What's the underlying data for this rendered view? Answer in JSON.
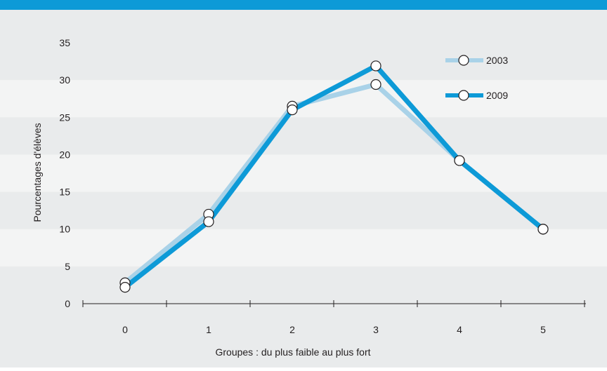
{
  "colors": {
    "top_bar": "#0d9ad7",
    "background": "#e9ebec",
    "band_light": "#f3f4f4",
    "series_2003": "#a9d2e8",
    "series_2009": "#0d9ad7",
    "axis": "#231f20"
  },
  "chart_data": {
    "type": "line",
    "title": "",
    "xlabel": "Groupes : du plus faible au plus fort",
    "ylabel": "Pourcentages d'élèves",
    "x": [
      0,
      1,
      2,
      3,
      4,
      5
    ],
    "x_tick_labels": [
      "0",
      "1",
      "2",
      "3",
      "4",
      "5"
    ],
    "y_tick_labels": [
      "0",
      "5",
      "10",
      "15",
      "20",
      "25",
      "30",
      "35"
    ],
    "ylim": [
      0,
      35
    ],
    "y_ticks": [
      0,
      5,
      10,
      15,
      20,
      25,
      30,
      35
    ],
    "grid": "alternating horizontal bands",
    "legend_position": "top-right",
    "series": [
      {
        "name": "2003",
        "values": [
          2.8,
          12.0,
          26.5,
          29.4,
          19.2,
          10.0
        ]
      },
      {
        "name": "2009",
        "values": [
          2.2,
          11.0,
          26.0,
          31.9,
          19.2,
          10.0
        ]
      }
    ]
  }
}
